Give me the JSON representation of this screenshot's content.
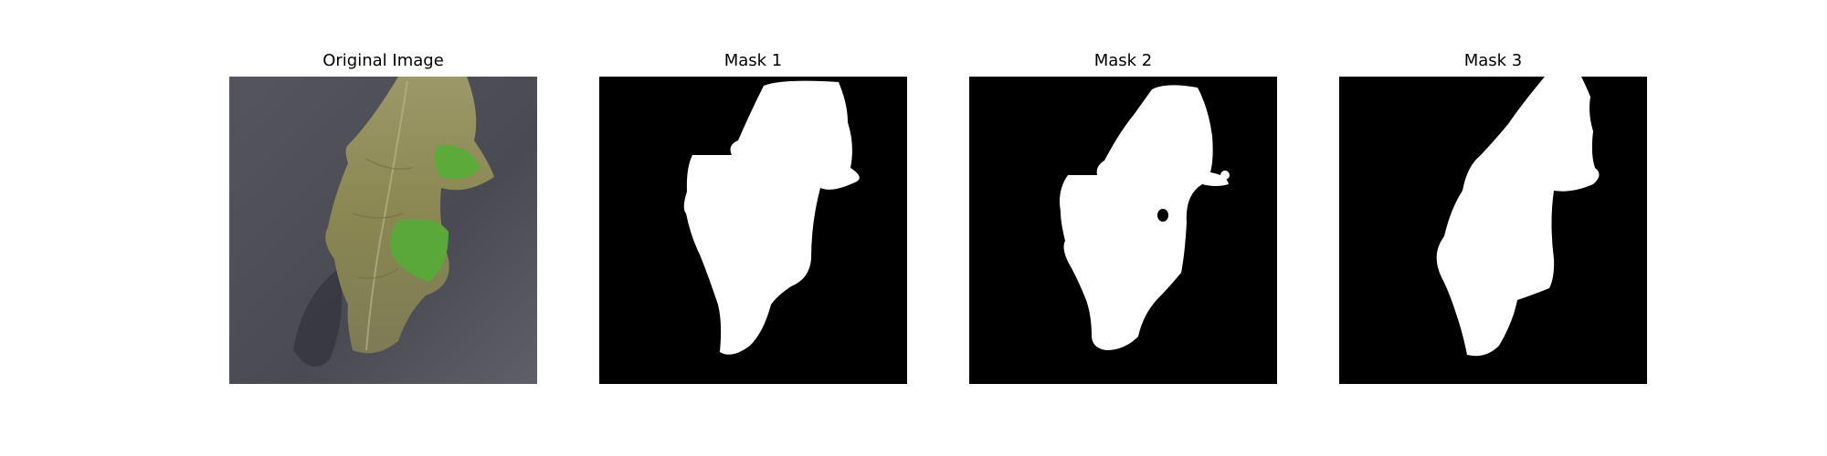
{
  "figure": {
    "panels": [
      {
        "title": "Original Image",
        "kind": "photo"
      },
      {
        "title": "Mask 1",
        "kind": "mask"
      },
      {
        "title": "Mask 2",
        "kind": "mask"
      },
      {
        "title": "Mask 3",
        "kind": "mask"
      }
    ]
  },
  "colors": {
    "background": "#ffffff",
    "mask_background": "#000000",
    "mask_foreground": "#ffffff",
    "photo_surface": "#4a4a52",
    "leaf_dry": "#8c8a58",
    "leaf_green": "#5aa83a"
  }
}
